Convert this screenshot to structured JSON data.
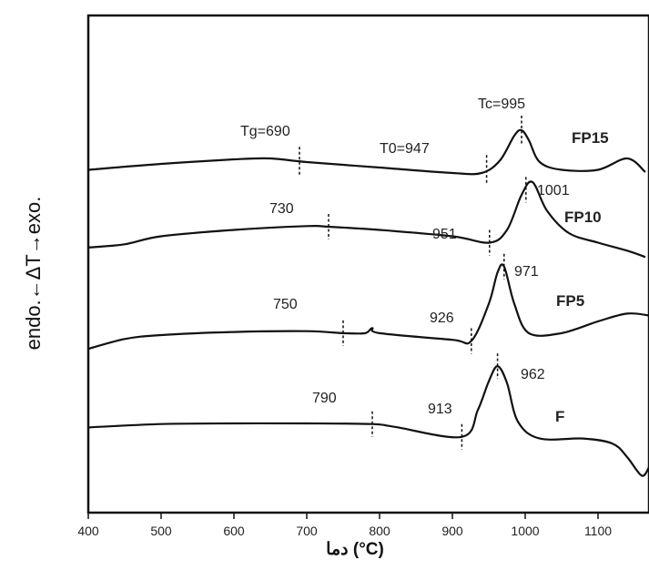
{
  "chart_data": {
    "type": "line",
    "title": "",
    "xlabel": "دما (°C)",
    "ylabel": "endo.←ΔT→exo.",
    "xlim": [
      400,
      1170
    ],
    "x_ticks": [
      400,
      500,
      600,
      700,
      800,
      900,
      1000,
      1100
    ],
    "y_ticks": [],
    "grid": false,
    "legend": "none",
    "series": [
      {
        "name": "FP15",
        "x": [
          400,
          500,
          600,
          650,
          700,
          800,
          900,
          940,
          965,
          985,
          995,
          1005,
          1020,
          1050,
          1100,
          1140,
          1165
        ],
        "y": [
          -0.05,
          0.08,
          0.18,
          0.2,
          0.12,
          0.0,
          -0.12,
          -0.12,
          0.15,
          0.7,
          0.82,
          0.6,
          0.12,
          -0.05,
          -0.05,
          0.2,
          -0.1
        ],
        "annotations": [
          {
            "x": 690,
            "label": "Tg=690"
          },
          {
            "x": 947,
            "label": "T0=947"
          },
          {
            "x": 995,
            "label": "Tc=995"
          }
        ]
      },
      {
        "name": "FP10",
        "x": [
          400,
          450,
          500,
          600,
          700,
          730,
          800,
          900,
          951,
          975,
          995,
          1010,
          1030,
          1060,
          1100,
          1140,
          1165
        ],
        "y": [
          -0.25,
          -0.15,
          0.1,
          0.3,
          0.42,
          0.4,
          0.3,
          0.1,
          -0.1,
          0.3,
          1.4,
          1.8,
          0.9,
          0.2,
          -0.1,
          -0.35,
          -0.55
        ],
        "annotations": [
          {
            "x": 730,
            "label": "730"
          },
          {
            "x": 951,
            "label": "951"
          },
          {
            "x": 1001,
            "label": "1001"
          }
        ]
      },
      {
        "name": "FP5",
        "x": [
          400,
          450,
          500,
          600,
          700,
          750,
          780,
          790,
          800,
          900,
          926,
          950,
          962,
          971,
          985,
          1005,
          1050,
          1100,
          1140,
          1170
        ],
        "y": [
          -0.35,
          -0.1,
          0.0,
          0.08,
          0.1,
          0.05,
          0.05,
          0.18,
          0.05,
          -0.12,
          -0.15,
          0.8,
          1.6,
          1.75,
          0.8,
          0.05,
          0.05,
          0.35,
          0.55,
          0.5
        ],
        "annotations": [
          {
            "x": 750,
            "label": "750"
          },
          {
            "x": 926,
            "label": "926"
          },
          {
            "x": 971,
            "label": "971"
          }
        ]
      },
      {
        "name": "F",
        "x": [
          400,
          500,
          600,
          700,
          790,
          820,
          913,
          935,
          950,
          962,
          975,
          990,
          1020,
          1080,
          1120,
          1140,
          1160,
          1170
        ],
        "y": [
          -0.12,
          -0.02,
          0.0,
          0.0,
          -0.02,
          -0.1,
          -0.4,
          0.4,
          1.25,
          1.7,
          1.2,
          0.05,
          -0.45,
          -0.45,
          -0.6,
          -1.0,
          -1.55,
          -1.3
        ],
        "annotations": [
          {
            "x": 790,
            "label": "790"
          },
          {
            "x": 913,
            "label": "913"
          },
          {
            "x": 962,
            "label": "962"
          }
        ]
      }
    ]
  }
}
